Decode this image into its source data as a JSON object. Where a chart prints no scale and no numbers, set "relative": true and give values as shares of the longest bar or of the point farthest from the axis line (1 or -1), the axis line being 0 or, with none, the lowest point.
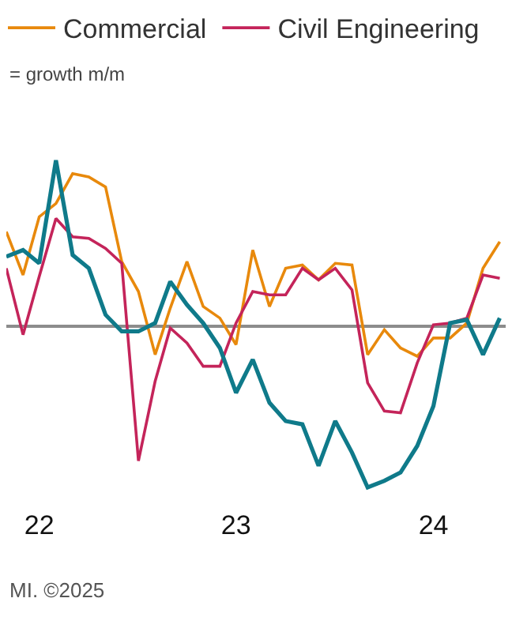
{
  "chart_data": {
    "type": "line",
    "subtitle": "= growth m/m",
    "relative": true,
    "x": [
      "2022-05",
      "2022-06",
      "2022-07",
      "2022-08",
      "2022-09",
      "2022-10",
      "2022-11",
      "2022-12",
      "2023-01",
      "2023-02",
      "2023-03",
      "2023-04",
      "2023-05",
      "2023-06",
      "2023-07",
      "2023-08",
      "2023-09",
      "2023-10",
      "2023-11",
      "2023-12",
      "2024-01",
      "2024-02",
      "2024-03",
      "2024-04",
      "2024-05",
      "2024-06",
      "2024-07",
      "2024-08",
      "2024-09",
      "2024-10",
      "2024-11"
    ],
    "series": [
      {
        "color": "#0f7a8a",
        "values": [
          0.42,
          0.46,
          0.38,
          1.0,
          0.43,
          0.35,
          0.07,
          -0.03,
          -0.03,
          0.02,
          0.27,
          0.13,
          0.02,
          -0.13,
          -0.4,
          -0.2,
          -0.46,
          -0.57,
          -0.59,
          -0.84,
          -0.57,
          -0.76,
          -0.97,
          -0.93,
          -0.88,
          -0.72,
          -0.48,
          0.02,
          0.04,
          -0.17,
          0.05
        ]
      },
      {
        "name": "Commercial",
        "color": "#e8890c",
        "values": [
          0.57,
          0.31,
          0.66,
          0.74,
          0.92,
          0.9,
          0.84,
          0.39,
          0.21,
          -0.17,
          0.11,
          0.39,
          0.12,
          0.05,
          -0.11,
          0.46,
          0.12,
          0.35,
          0.37,
          0.28,
          0.38,
          0.37,
          -0.17,
          -0.02,
          -0.13,
          -0.18,
          -0.07,
          -0.07,
          0.02,
          0.35,
          0.51
        ]
      },
      {
        "name": "Civil Engineering",
        "color": "#c4245a",
        "values": [
          0.35,
          -0.05,
          0.3,
          0.65,
          0.54,
          0.53,
          0.47,
          0.38,
          -0.81,
          -0.33,
          -0.01,
          -0.1,
          -0.24,
          -0.24,
          0.02,
          0.21,
          0.19,
          0.19,
          0.35,
          0.28,
          0.35,
          0.22,
          -0.34,
          -0.51,
          -0.52,
          -0.22,
          0.01,
          0.02,
          0.05,
          0.31,
          0.29
        ]
      }
    ],
    "xlim": [
      "2022-05-01",
      "2024-11-12"
    ],
    "xticks": [
      {
        "value": "2022-07-01",
        "label": "22"
      },
      {
        "value": "2023-07-01",
        "label": "23"
      },
      {
        "value": "2024-07-01",
        "label": "24"
      }
    ],
    "legend": "top left",
    "marker": "none",
    "line_style": "solid",
    "annotations": [
      "MI. ©2025"
    ]
  }
}
